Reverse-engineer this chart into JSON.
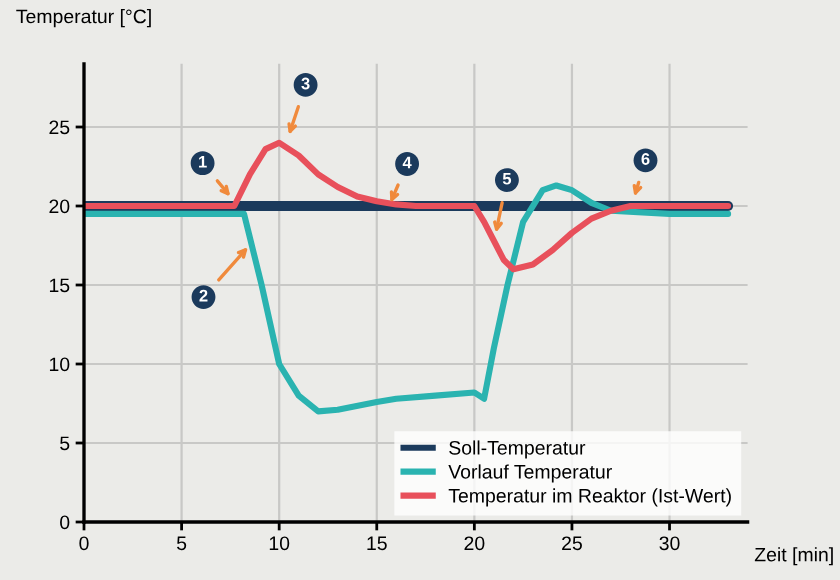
{
  "chart_data": {
    "type": "line",
    "xlabel": "Zeit [min]",
    "ylabel": "Temperatur [°C]",
    "xlim": [
      0,
      34
    ],
    "ylim": [
      0,
      29
    ],
    "xticks": [
      0,
      5,
      10,
      15,
      20,
      25,
      30
    ],
    "yticks": [
      0,
      5,
      10,
      15,
      20,
      25
    ],
    "grid": true,
    "legend": "bottom right",
    "marker": "none",
    "line_style": "solid",
    "series": [
      {
        "name": "Soll-Temperatur",
        "color": "#1b3a5c",
        "x": [
          0,
          33
        ],
        "values": [
          20,
          20
        ]
      },
      {
        "name": "Vorlauf Temperatur",
        "color": "#2ab3b0",
        "x": [
          0,
          8.2,
          9.1,
          10,
          11,
          12,
          13,
          15,
          16,
          18,
          20,
          20.5,
          21,
          21.7,
          22.5,
          23.5,
          24.2,
          25,
          26,
          27,
          30,
          33
        ],
        "values": [
          19.5,
          19.5,
          15,
          10,
          8,
          7,
          7.1,
          7.6,
          7.8,
          8,
          8.2,
          7.8,
          11,
          15,
          19,
          21,
          21.3,
          21,
          20.2,
          19.7,
          19.5,
          19.5
        ]
      },
      {
        "name": "Temperatur im Reaktor (Ist-Wert)",
        "color": "#e8505b",
        "x": [
          0,
          7.7,
          8.5,
          9.3,
          10,
          11,
          12,
          13,
          14,
          15,
          16,
          17,
          20,
          20.5,
          21,
          21.5,
          22,
          23,
          24,
          25,
          26,
          27,
          28,
          33
        ],
        "values": [
          20,
          20,
          22,
          23.6,
          24,
          23.2,
          22,
          21.2,
          20.6,
          20.3,
          20.1,
          20,
          20,
          19,
          17.8,
          16.6,
          16,
          16.3,
          17.2,
          18.3,
          19.2,
          19.7,
          20,
          20
        ]
      }
    ],
    "annotations": [
      {
        "text": "1",
        "x": 7.5,
        "y": 20.6
      },
      {
        "text": "2",
        "x": 8.4,
        "y": 17.4
      },
      {
        "text": "3",
        "x": 10.5,
        "y": 24.5
      },
      {
        "text": "4",
        "x": 15.7,
        "y": 20.2
      },
      {
        "text": "5",
        "x": 21.1,
        "y": 18.3
      },
      {
        "text": "6",
        "x": 28.2,
        "y": 20.6
      }
    ]
  }
}
